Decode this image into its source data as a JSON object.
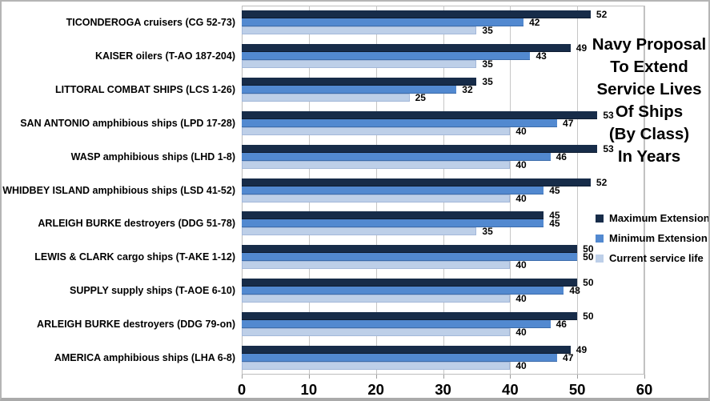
{
  "chart_data": {
    "type": "bar",
    "orientation": "horizontal",
    "title_lines": [
      "Navy Proposal",
      "To Extend",
      "Service Lives",
      "Of Ships",
      "(By Class)",
      "In Years"
    ],
    "categories": [
      "TICONDEROGA cruisers (CG 52-73)",
      "KAISER oilers (T-AO 187-204)",
      "LITTORAL COMBAT SHIPS (LCS 1-26)",
      "SAN ANTONIO amphibious ships (LPD 17-28)",
      "WASP amphibious ships (LHD 1-8)",
      "WHIDBEY ISLAND amphibious ships (LSD 41-52)",
      "ARLEIGH BURKE destroyers (DDG 51-78)",
      "LEWIS & CLARK cargo ships (T-AKE 1-12)",
      "SUPPLY supply ships (T-AOE 6-10)",
      "ARLEIGH BURKE destroyers (DDG 79-on)",
      "AMERICA amphibious ships (LHA 6-8)"
    ],
    "series": [
      {
        "name": "Maximum Extension",
        "color": "#172C49",
        "values": [
          52,
          49,
          35,
          53,
          53,
          52,
          45,
          50,
          50,
          50,
          49
        ]
      },
      {
        "name": "Minimum Extension",
        "color": "#5289D0",
        "values": [
          42,
          43,
          32,
          47,
          46,
          45,
          45,
          50,
          48,
          46,
          47
        ]
      },
      {
        "name": "Current service life",
        "color": "#BDCFE8",
        "values": [
          35,
          35,
          25,
          40,
          40,
          40,
          35,
          40,
          40,
          40,
          40
        ]
      }
    ],
    "xlim": [
      0,
      60
    ],
    "x_ticks": [
      0,
      10,
      20,
      30,
      40,
      50,
      60
    ],
    "grid": true,
    "value_labels": true,
    "legend_position": "right"
  },
  "colors": {
    "background": "#ffffff",
    "gridline": "#c6c6c6",
    "plot_border": "#bdbdbd",
    "text": "#000000"
  }
}
